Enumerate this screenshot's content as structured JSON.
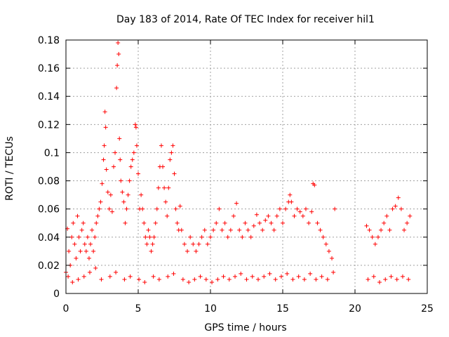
{
  "chart_data": {
    "type": "scatter",
    "title": "Day 183 of 2014, Rate Of TEC Index for receiver hil1",
    "xlabel": "GPS time / hours",
    "ylabel": "ROTI / TECUs",
    "xlim": [
      0,
      25
    ],
    "ylim": [
      0,
      0.18
    ],
    "xticks": [
      0,
      5,
      10,
      15,
      20,
      25
    ],
    "xtick_labels": [
      "0",
      "5",
      "10",
      "15",
      "20",
      "25"
    ],
    "yticks": [
      0,
      0.02,
      0.04,
      0.06,
      0.08,
      0.1,
      0.12,
      0.14,
      0.16,
      0.18
    ],
    "ytick_labels": [
      "0",
      "0.02",
      "0.04",
      "0.06",
      "0.08",
      "0.1",
      "0.12",
      "0.14",
      "0.16",
      "0.18"
    ],
    "grid": true,
    "marker": "+",
    "color": "#ff0000",
    "series": [
      {
        "name": "hil1",
        "x": [
          0.0,
          0.1,
          0.2,
          0.3,
          0.4,
          0.5,
          0.6,
          0.7,
          0.8,
          0.9,
          1.0,
          1.1,
          1.2,
          1.3,
          1.4,
          1.5,
          1.6,
          1.7,
          1.8,
          1.9,
          2.0,
          2.1,
          2.2,
          2.3,
          2.4,
          2.5,
          2.6,
          2.65,
          2.7,
          2.75,
          2.8,
          2.9,
          3.0,
          3.1,
          3.2,
          3.3,
          3.4,
          3.5,
          3.55,
          3.6,
          3.65,
          3.7,
          3.75,
          3.8,
          3.9,
          4.0,
          4.1,
          4.2,
          4.3,
          4.4,
          4.5,
          4.6,
          4.7,
          4.8,
          4.85,
          4.9,
          5.0,
          5.1,
          5.2,
          5.3,
          5.4,
          5.5,
          5.6,
          5.7,
          5.8,
          5.9,
          6.0,
          6.1,
          6.2,
          6.3,
          6.4,
          6.5,
          6.6,
          6.7,
          6.8,
          6.9,
          7.0,
          7.1,
          7.2,
          7.3,
          7.4,
          7.5,
          7.6,
          7.7,
          7.8,
          7.9,
          8.0,
          8.2,
          8.4,
          8.6,
          8.8,
          9.0,
          9.2,
          9.4,
          9.6,
          9.8,
          10.0,
          10.2,
          10.4,
          10.6,
          10.8,
          11.0,
          11.2,
          11.4,
          11.6,
          11.8,
          12.0,
          12.2,
          12.4,
          12.6,
          12.8,
          13.0,
          13.2,
          13.4,
          13.6,
          13.8,
          14.0,
          14.2,
          14.4,
          14.6,
          14.8,
          15.0,
          15.2,
          15.4,
          15.5,
          15.6,
          15.8,
          16.0,
          16.2,
          16.4,
          16.6,
          16.8,
          17.0,
          17.1,
          17.2,
          17.4,
          17.6,
          17.8,
          18.0,
          18.2,
          18.4,
          18.6,
          20.8,
          21.0,
          21.2,
          21.4,
          21.6,
          21.8,
          22.0,
          22.2,
          22.4,
          22.6,
          22.8,
          23.0,
          23.2,
          23.4,
          23.6,
          23.8,
          0.15,
          0.45,
          0.85,
          1.25,
          1.65,
          2.05,
          2.45,
          3.05,
          3.45,
          4.05,
          4.45,
          5.05,
          5.45,
          6.05,
          6.45,
          7.05,
          7.45,
          8.1,
          8.5,
          8.9,
          9.3,
          9.7,
          10.1,
          10.5,
          10.9,
          11.3,
          11.7,
          12.1,
          12.5,
          12.9,
          13.3,
          13.7,
          14.1,
          14.5,
          14.9,
          15.3,
          15.7,
          16.1,
          16.5,
          16.9,
          17.3,
          17.7,
          18.1,
          18.5,
          20.9,
          21.3,
          21.7,
          22.1,
          22.5,
          22.9,
          23.3,
          23.7
        ],
        "y": [
          0.015,
          0.046,
          0.03,
          0.02,
          0.04,
          0.05,
          0.035,
          0.025,
          0.055,
          0.04,
          0.03,
          0.045,
          0.05,
          0.035,
          0.03,
          0.04,
          0.025,
          0.035,
          0.045,
          0.03,
          0.04,
          0.05,
          0.055,
          0.06,
          0.065,
          0.078,
          0.095,
          0.105,
          0.129,
          0.118,
          0.088,
          0.072,
          0.06,
          0.07,
          0.058,
          0.09,
          0.1,
          0.146,
          0.162,
          0.178,
          0.17,
          0.11,
          0.095,
          0.08,
          0.072,
          0.065,
          0.05,
          0.06,
          0.07,
          0.08,
          0.09,
          0.095,
          0.1,
          0.12,
          0.118,
          0.105,
          0.085,
          0.06,
          0.07,
          0.06,
          0.05,
          0.04,
          0.035,
          0.045,
          0.04,
          0.03,
          0.035,
          0.04,
          0.05,
          0.06,
          0.075,
          0.09,
          0.105,
          0.09,
          0.075,
          0.065,
          0.055,
          0.075,
          0.095,
          0.1,
          0.105,
          0.085,
          0.06,
          0.05,
          0.045,
          0.062,
          0.045,
          0.035,
          0.03,
          0.04,
          0.035,
          0.03,
          0.035,
          0.04,
          0.045,
          0.035,
          0.04,
          0.045,
          0.05,
          0.06,
          0.045,
          0.05,
          0.04,
          0.045,
          0.055,
          0.064,
          0.045,
          0.04,
          0.05,
          0.045,
          0.04,
          0.048,
          0.056,
          0.05,
          0.045,
          0.052,
          0.055,
          0.05,
          0.045,
          0.055,
          0.06,
          0.05,
          0.06,
          0.065,
          0.07,
          0.065,
          0.055,
          0.06,
          0.058,
          0.055,
          0.06,
          0.05,
          0.058,
          0.078,
          0.077,
          0.05,
          0.045,
          0.04,
          0.035,
          0.03,
          0.025,
          0.06,
          0.048,
          0.045,
          0.04,
          0.035,
          0.04,
          0.045,
          0.05,
          0.055,
          0.045,
          0.06,
          0.062,
          0.068,
          0.06,
          0.045,
          0.05,
          0.055,
          0.012,
          0.008,
          0.01,
          0.012,
          0.015,
          0.018,
          0.01,
          0.012,
          0.015,
          0.01,
          0.012,
          0.01,
          0.008,
          0.012,
          0.01,
          0.012,
          0.014,
          0.01,
          0.008,
          0.01,
          0.012,
          0.01,
          0.008,
          0.01,
          0.012,
          0.01,
          0.012,
          0.014,
          0.01,
          0.012,
          0.01,
          0.012,
          0.014,
          0.01,
          0.012,
          0.014,
          0.01,
          0.012,
          0.01,
          0.014,
          0.01,
          0.012,
          0.01,
          0.015,
          0.01,
          0.012,
          0.008,
          0.01,
          0.012,
          0.01,
          0.012,
          0.01
        ]
      }
    ]
  }
}
